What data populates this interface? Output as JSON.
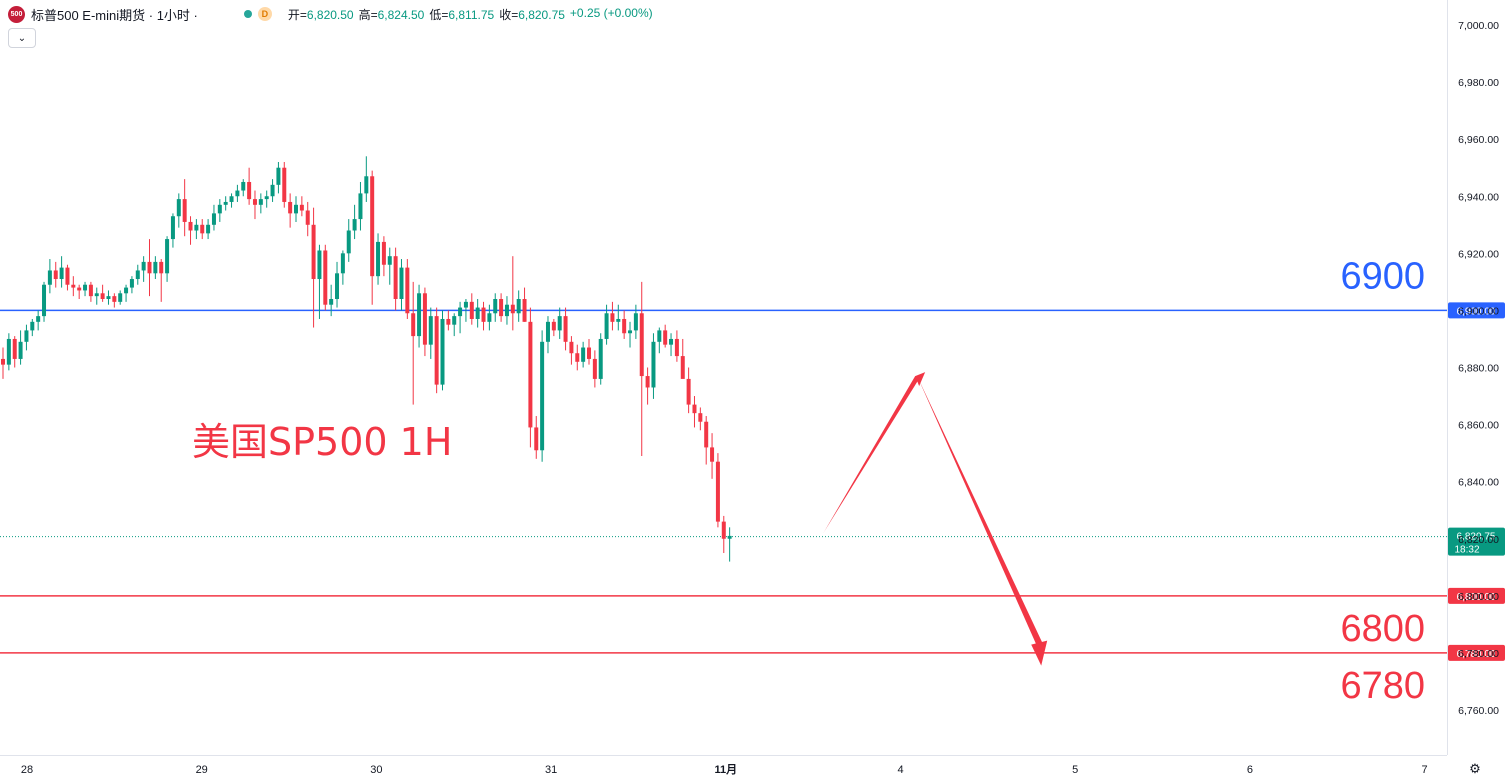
{
  "header": {
    "logo_text": "500",
    "symbol_title": "标普500 E-mini期货 · 1小时 ·",
    "feed_badge": "D",
    "open_label": "开=",
    "open_value": "6,820.50",
    "high_label": "高=",
    "high_value": "6,824.50",
    "low_label": "低=",
    "low_value": "6,811.75",
    "close_label": "收=",
    "close_value": "6,820.75",
    "change_value": "+0.25 (+0.00%)"
  },
  "colors": {
    "up": "#089981",
    "down": "#f23645",
    "resistance": "#2962ff",
    "support": "#f23645",
    "annotation": "#f23645"
  },
  "chart_data": {
    "type": "candlestick",
    "annotation_text": "美国SP500 1H",
    "y_range": [
      6750,
      7005
    ],
    "y_ticks": [
      "7,000.00",
      "6,980.00",
      "6,960.00",
      "6,940.00",
      "6,920.00",
      "6,900.00",
      "6,880.00",
      "6,860.00",
      "6,840.00",
      "6,820.00",
      "6,800.00",
      "6,780.00",
      "6,760.00"
    ],
    "x_ticks": [
      "28",
      "29",
      "30",
      "31",
      "11月",
      "4",
      "5",
      "6",
      "7"
    ],
    "current_price": {
      "label": "6,820.75",
      "countdown": "18:32",
      "value": 6820.75
    },
    "levels": [
      {
        "value": 6900,
        "label": "6,900.00",
        "big_label": "6900",
        "role": "resistance"
      },
      {
        "value": 6800,
        "label": "6,800.00",
        "big_label": "6800",
        "role": "support"
      },
      {
        "value": 6780,
        "label": "6,780.00",
        "big_label": "6780",
        "role": "support"
      }
    ],
    "projection_arrow": {
      "from": {
        "bar_index": 140,
        "price": 6822
      },
      "peak": {
        "bar_index": 156,
        "price": 6877
      },
      "to": {
        "bar_index": 177,
        "price": 6778
      }
    },
    "candles": [
      [
        6883,
        6887,
        6876,
        6881
      ],
      [
        6881,
        6892,
        6879,
        6890
      ],
      [
        6890,
        6891,
        6880,
        6883
      ],
      [
        6883,
        6893,
        6881,
        6889
      ],
      [
        6889,
        6895,
        6886,
        6893
      ],
      [
        6893,
        6897,
        6891,
        6896
      ],
      [
        6896,
        6900,
        6893,
        6898
      ],
      [
        6898,
        6910,
        6896,
        6909
      ],
      [
        6909,
        6918,
        6906,
        6914
      ],
      [
        6914,
        6917,
        6908,
        6911
      ],
      [
        6911,
        6919,
        6908,
        6915
      ],
      [
        6915,
        6916,
        6907,
        6909
      ],
      [
        6909,
        6912,
        6905,
        6908
      ],
      [
        6908,
        6909,
        6904,
        6907
      ],
      [
        6907,
        6910,
        6905,
        6909
      ],
      [
        6909,
        6910,
        6903,
        6905
      ],
      [
        6905,
        6908,
        6902,
        6906
      ],
      [
        6906,
        6909,
        6903,
        6904
      ],
      [
        6904,
        6907,
        6902,
        6905
      ],
      [
        6905,
        6906,
        6901,
        6903
      ],
      [
        6903,
        6907,
        6902,
        6906
      ],
      [
        6906,
        6909,
        6903,
        6908
      ],
      [
        6908,
        6912,
        6906,
        6911
      ],
      [
        6911,
        6916,
        6909,
        6914
      ],
      [
        6914,
        6919,
        6910,
        6917
      ],
      [
        6917,
        6925,
        6905,
        6913
      ],
      [
        6913,
        6919,
        6911,
        6917
      ],
      [
        6917,
        6918,
        6903,
        6913
      ],
      [
        6913,
        6926,
        6910,
        6925
      ],
      [
        6925,
        6934,
        6922,
        6933
      ],
      [
        6933,
        6941,
        6929,
        6939
      ],
      [
        6939,
        6946,
        6926,
        6931
      ],
      [
        6931,
        6933,
        6923,
        6928
      ],
      [
        6928,
        6932,
        6925,
        6930
      ],
      [
        6930,
        6932,
        6925,
        6927
      ],
      [
        6927,
        6932,
        6925,
        6930
      ],
      [
        6930,
        6937,
        6928,
        6934
      ],
      [
        6934,
        6939,
        6931,
        6937
      ],
      [
        6937,
        6940,
        6935,
        6938
      ],
      [
        6938,
        6941,
        6936,
        6940
      ],
      [
        6940,
        6944,
        6938,
        6942
      ],
      [
        6942,
        6946,
        6940,
        6945
      ],
      [
        6945,
        6950,
        6937,
        6939
      ],
      [
        6939,
        6942,
        6932,
        6937
      ],
      [
        6937,
        6941,
        6934,
        6939
      ],
      [
        6939,
        6942,
        6936,
        6940
      ],
      [
        6940,
        6946,
        6938,
        6944
      ],
      [
        6944,
        6952,
        6941,
        6950
      ],
      [
        6950,
        6952,
        6936,
        6938
      ],
      [
        6938,
        6941,
        6929,
        6934
      ],
      [
        6934,
        6940,
        6931,
        6937
      ],
      [
        6937,
        6940,
        6933,
        6935
      ],
      [
        6935,
        6938,
        6926,
        6930
      ],
      [
        6930,
        6936,
        6894,
        6911
      ],
      [
        6911,
        6923,
        6897,
        6921
      ],
      [
        6921,
        6923,
        6900,
        6902
      ],
      [
        6902,
        6909,
        6898,
        6904
      ],
      [
        6904,
        6917,
        6901,
        6913
      ],
      [
        6913,
        6921,
        6909,
        6920
      ],
      [
        6920,
        6932,
        6917,
        6928
      ],
      [
        6928,
        6937,
        6925,
        6932
      ],
      [
        6932,
        6945,
        6928,
        6941
      ],
      [
        6941,
        6954,
        6938,
        6947
      ],
      [
        6947,
        6949,
        6902,
        6912
      ],
      [
        6912,
        6927,
        6909,
        6924
      ],
      [
        6924,
        6926,
        6912,
        6916
      ],
      [
        6916,
        6922,
        6909,
        6919
      ],
      [
        6919,
        6922,
        6900,
        6904
      ],
      [
        6904,
        6918,
        6900,
        6915
      ],
      [
        6915,
        6918,
        6897,
        6899
      ],
      [
        6899,
        6910,
        6867,
        6891
      ],
      [
        6891,
        6909,
        6887,
        6906
      ],
      [
        6906,
        6908,
        6884,
        6888
      ],
      [
        6888,
        6901,
        6883,
        6898
      ],
      [
        6898,
        6901,
        6871,
        6874
      ],
      [
        6874,
        6900,
        6872,
        6897
      ],
      [
        6897,
        6900,
        6893,
        6895
      ],
      [
        6895,
        6899,
        6891,
        6898
      ],
      [
        6898,
        6903,
        6892,
        6901
      ],
      [
        6901,
        6904,
        6896,
        6903
      ],
      [
        6903,
        6906,
        6895,
        6897
      ],
      [
        6897,
        6904,
        6894,
        6901
      ],
      [
        6901,
        6903,
        6893,
        6896
      ],
      [
        6896,
        6902,
        6893,
        6899
      ],
      [
        6899,
        6906,
        6896,
        6904
      ],
      [
        6904,
        6906,
        6896,
        6898
      ],
      [
        6898,
        6905,
        6895,
        6902
      ],
      [
        6902,
        6919,
        6893,
        6899
      ],
      [
        6899,
        6907,
        6896,
        6904
      ],
      [
        6904,
        6908,
        6896,
        6896
      ],
      [
        6896,
        6901,
        6852,
        6859
      ],
      [
        6859,
        6863,
        6848,
        6851
      ],
      [
        6851,
        6893,
        6847,
        6889
      ],
      [
        6889,
        6898,
        6885,
        6896
      ],
      [
        6896,
        6897,
        6891,
        6893
      ],
      [
        6893,
        6901,
        6890,
        6898
      ],
      [
        6898,
        6901,
        6886,
        6889
      ],
      [
        6889,
        6891,
        6881,
        6885
      ],
      [
        6885,
        6888,
        6879,
        6882
      ],
      [
        6882,
        6889,
        6880,
        6887
      ],
      [
        6887,
        6890,
        6881,
        6883
      ],
      [
        6883,
        6886,
        6873,
        6876
      ],
      [
        6876,
        6892,
        6874,
        6890
      ],
      [
        6890,
        6902,
        6888,
        6899
      ],
      [
        6899,
        6903,
        6893,
        6896
      ],
      [
        6896,
        6902,
        6893,
        6897
      ],
      [
        6897,
        6900,
        6890,
        6892
      ],
      [
        6892,
        6896,
        6887,
        6893
      ],
      [
        6893,
        6902,
        6890,
        6899
      ],
      [
        6899,
        6910,
        6849,
        6877
      ],
      [
        6877,
        6880,
        6867,
        6873
      ],
      [
        6873,
        6892,
        6869,
        6889
      ],
      [
        6889,
        6894,
        6885,
        6893
      ],
      [
        6893,
        6895,
        6887,
        6888
      ],
      [
        6888,
        6892,
        6884,
        6890
      ],
      [
        6890,
        6893,
        6882,
        6884
      ],
      [
        6884,
        6890,
        6877,
        6876
      ],
      [
        6876,
        6880,
        6864,
        6867
      ],
      [
        6867,
        6870,
        6859,
        6864
      ],
      [
        6864,
        6866,
        6858,
        6861
      ],
      [
        6861,
        6863,
        6846,
        6852
      ],
      [
        6852,
        6857,
        6841,
        6847
      ],
      [
        6847,
        6850,
        6824,
        6826
      ],
      [
        6826,
        6828,
        6815,
        6820
      ],
      [
        6820,
        6824,
        6812,
        6821
      ]
    ]
  }
}
